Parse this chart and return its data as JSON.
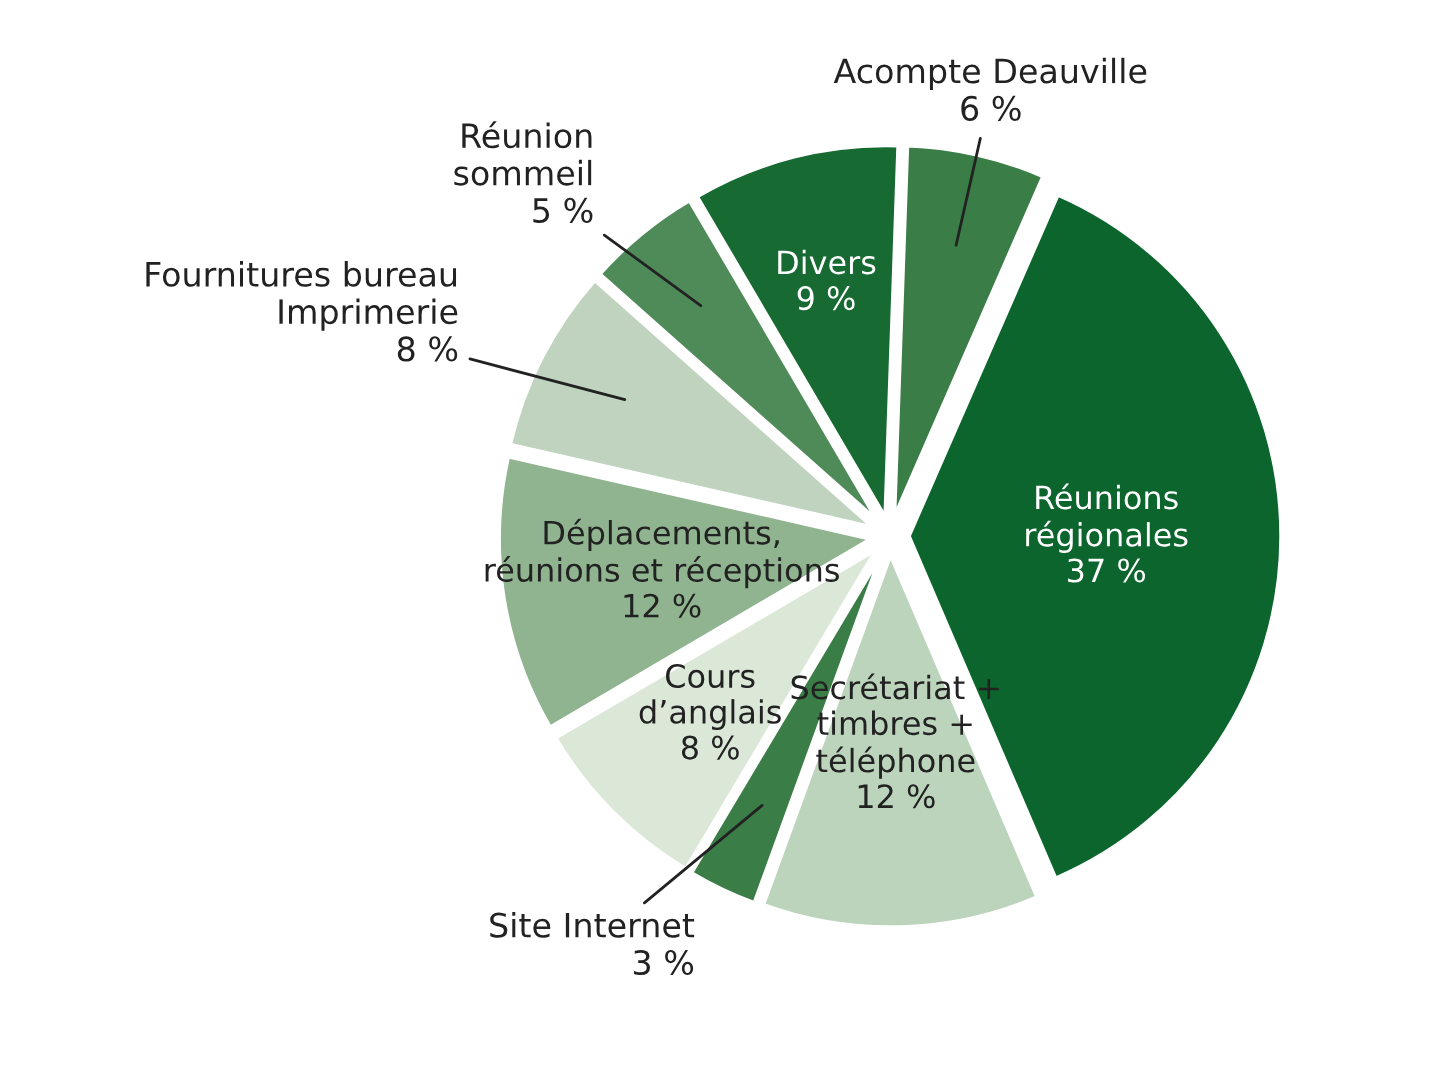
{
  "chart_data": {
    "type": "pie",
    "categories": [
      "Acompte Deauville",
      "Réunions\nrégionales",
      "Secrétariat +\ntimbres +\ntéléphone",
      "Site Internet",
      "Cours\nd’anglais",
      "Déplacements,\nréunions et réceptions",
      "Fournitures bureau\nImprimerie",
      "Réunion\nsommeil",
      "Divers"
    ],
    "values": [
      6,
      37,
      12,
      3,
      8,
      12,
      8,
      5,
      9
    ],
    "value_labels": [
      "6 %",
      "37 %",
      "12 %",
      "3 %",
      "8 %",
      "12 %",
      "8 %",
      "5 %",
      "9 %"
    ],
    "colors": [
      "#3b7d47",
      "#0b652c",
      "#bcd3bc",
      "#3b7d47",
      "#dbe8d8",
      "#8fb48f",
      "#bfd3bf",
      "#4f8a59",
      "#176a31"
    ]
  }
}
